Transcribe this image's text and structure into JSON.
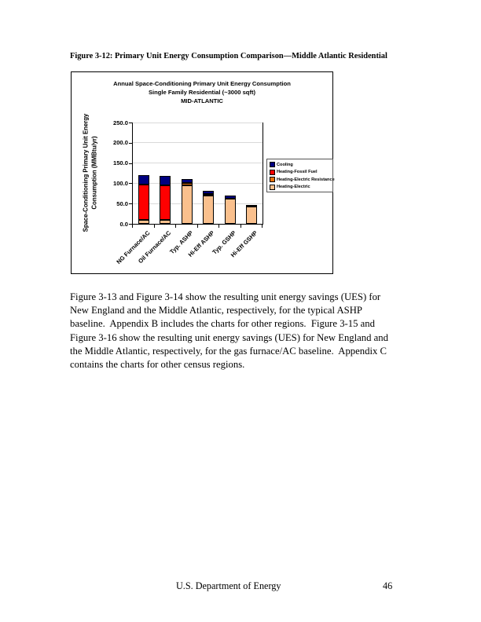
{
  "document": {
    "caption": "Figure 3-12: Primary Unit Energy Consumption Comparison—Middle Atlantic Residential",
    "body_lines": [
      "Figure 3-13 and Figure 3-14 show the resulting unit energy savings (UES) for",
      "New England and the Middle Atlantic, respectively, for the typical ASHP",
      "baseline.  Appendix B includes the charts for other regions.  Figure 3-15 and",
      "Figure 3-16 show the resulting unit energy savings (UES) for New England and",
      "the Middle Atlantic, respectively, for the gas furnace/AC baseline.  Appendix C",
      "contains the charts for other census regions."
    ],
    "footer_center": "U.S. Department of Energy",
    "page_number": "46"
  },
  "chart_data": {
    "type": "bar",
    "stacked": true,
    "title_lines": [
      "Annual Space-Conditioning Primary Unit Energy Consumption",
      "Single Family Residential (~3000 sqft)",
      "MID-ATLANTIC"
    ],
    "y_axis_label_lines": [
      "Space-Conditioning Primary Unit Energy",
      "Consumption (MMBtu/yr)"
    ],
    "categories": [
      "NG Furnace/AC",
      "Oil Furnace/AC",
      "Typ. ASHP",
      "Hi-Eff ASHP",
      "Typ. GSHP",
      "Hi-Eff GSHP"
    ],
    "series": [
      {
        "name": "Heating-Electric",
        "color": "#FAC08D",
        "values": [
          9,
          9,
          95,
          70,
          62,
          42
        ]
      },
      {
        "name": "Heating-Electric Resistance",
        "color": "#E8720C",
        "values": [
          0,
          0,
          6,
          4,
          0,
          0
        ]
      },
      {
        "name": "Heating-Fossil Fuel",
        "color": "#FF0000",
        "values": [
          87,
          86,
          0,
          0,
          0,
          0
        ]
      },
      {
        "name": "Cooling",
        "color": "#000080",
        "values": [
          24,
          23,
          9,
          7,
          8,
          5
        ]
      }
    ],
    "bar_totals": [
      120,
      118,
      110,
      81,
      70,
      47
    ],
    "legend_order": [
      "Cooling",
      "Heating-Fossil Fuel",
      "Heating-Electric Resistance",
      "Heating-Electric"
    ],
    "ylim": [
      0,
      250
    ],
    "ytick_labels": [
      "0.0",
      "50.0",
      "100.0",
      "150.0",
      "200.0",
      "250.0"
    ],
    "grid": true,
    "legend_position": "right",
    "colors": {
      "gridline": "#D9D9D9",
      "axis": "#000000"
    }
  }
}
